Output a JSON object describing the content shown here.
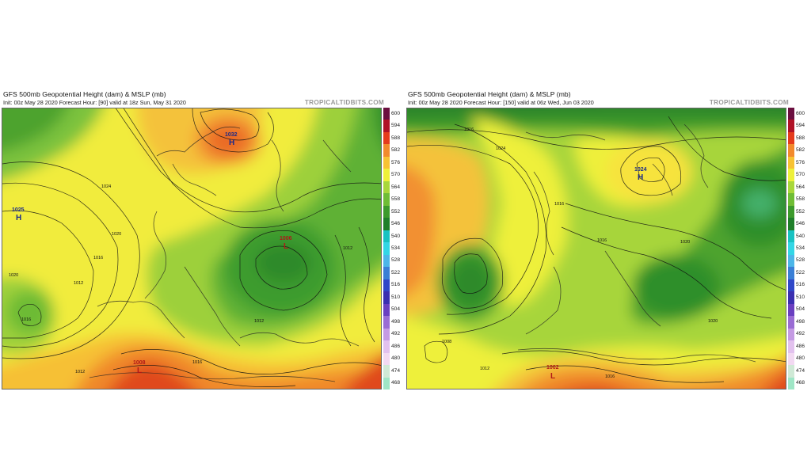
{
  "panels": [
    {
      "title": "GFS 500mb Geopotential Height (dam) & MSLP (mb)",
      "subtitle": "Init: 00z May 28 2020   Forecast Hour: [90]   valid at 18z Sun, May 31 2020",
      "brand": "TROPICALTIDBITS.COM",
      "pressure_labels": [
        {
          "value": "1025",
          "symbol": "H"
        },
        {
          "value": "1032",
          "symbol": "H"
        },
        {
          "value": "1006",
          "symbol": "L"
        },
        {
          "value": "1008",
          "symbol": "L"
        }
      ],
      "isobar_labels": [
        "1024",
        "1020",
        "1016",
        "1012",
        "1020",
        "1016",
        "1012",
        "1016",
        "1012",
        "1012"
      ]
    },
    {
      "title": "GFS 500mb Geopotential Height (dam) & MSLP (mb)",
      "subtitle": "Init: 00z May 28 2020   Forecast Hour: [150]   valid at 06z Wed, Jun 03 2020",
      "brand": "TROPICALTIDBITS.COM",
      "pressure_labels": [
        {
          "value": "1024",
          "symbol": "H"
        },
        {
          "value": "1002",
          "symbol": "L"
        }
      ],
      "isobar_labels": [
        "1016",
        "1024",
        "1016",
        "1020",
        "1016",
        "1008",
        "1012",
        "1016",
        "1020"
      ]
    }
  ],
  "colorbar": {
    "levels": [
      "600",
      "594",
      "588",
      "582",
      "576",
      "570",
      "564",
      "558",
      "552",
      "546",
      "540",
      "534",
      "528",
      "522",
      "516",
      "510",
      "504",
      "498",
      "492",
      "486",
      "480",
      "474",
      "468"
    ],
    "colors": [
      "#6b0f3f",
      "#b01226",
      "#e53b1c",
      "#f28a2c",
      "#f7c233",
      "#eef03a",
      "#a9d73a",
      "#6fbd35",
      "#3c9a2c",
      "#1f7f2a",
      "#18c2c2",
      "#33d6e6",
      "#4cb6e8",
      "#3a7fd6",
      "#2f47c8",
      "#3a2fb0",
      "#6a3fc0",
      "#9a6cd4",
      "#c49ae3",
      "#e2c1ee",
      "#f2d9f2",
      "#cfe9d6",
      "#9fe6c6"
    ]
  }
}
